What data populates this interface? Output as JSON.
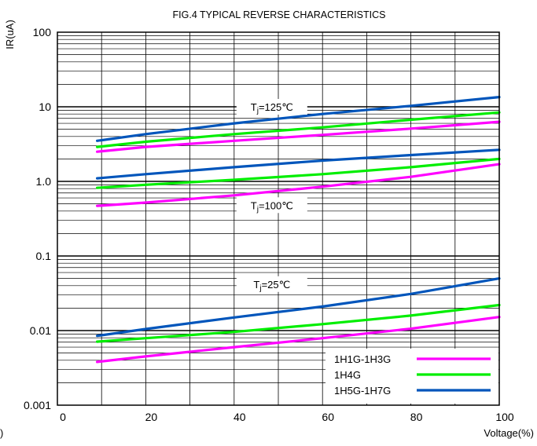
{
  "chart_data": {
    "type": "line",
    "title": "FIG.4  TYPICAL REVERSE CHARACTERISTICS",
    "ylabel": "IR(uA)",
    "xlabel": "Voltage(%)",
    "x_scale": "linear",
    "y_scale": "log",
    "xlim": [
      0,
      100
    ],
    "ylim": [
      0.001,
      100
    ],
    "x_ticks": [
      "0",
      "20",
      "40",
      "60",
      "80",
      "100"
    ],
    "x_tick_values": [
      0,
      20,
      40,
      60,
      80,
      100
    ],
    "y_ticks": [
      "100",
      "10",
      "1.0",
      "0.1",
      "0.01",
      "0.001"
    ],
    "y_tick_values": [
      100,
      10,
      1,
      0.1,
      0.01,
      0.001
    ],
    "grid": true,
    "legend_position": "bottom-right",
    "stray_label": ")",
    "series": [
      {
        "name": "1H1G-1H3G",
        "group": "Tj=125℃",
        "color": "#ff00ff",
        "x": [
          9,
          20,
          40,
          60,
          80,
          100
        ],
        "y": [
          2.5,
          2.9,
          3.5,
          4.2,
          5.1,
          6.3
        ]
      },
      {
        "name": "1H4G",
        "group": "Tj=125℃",
        "color": "#00ee00",
        "x": [
          9,
          20,
          40,
          60,
          80,
          100
        ],
        "y": [
          2.9,
          3.4,
          4.3,
          5.3,
          6.7,
          8.4
        ]
      },
      {
        "name": "1H5G-1H7G",
        "group": "Tj=125℃",
        "color": "#0055bb",
        "x": [
          9,
          20,
          40,
          60,
          80,
          100
        ],
        "y": [
          3.5,
          4.3,
          6.0,
          8.0,
          10.3,
          13.5
        ]
      },
      {
        "name": "1H1G-1H3G",
        "group": "Tj=100℃",
        "color": "#ff00ff",
        "x": [
          9,
          20,
          40,
          60,
          80,
          100
        ],
        "y": [
          0.47,
          0.52,
          0.65,
          0.85,
          1.15,
          1.7
        ]
      },
      {
        "name": "1H4G",
        "group": "Tj=100℃",
        "color": "#00ee00",
        "x": [
          9,
          20,
          40,
          60,
          80,
          100
        ],
        "y": [
          0.82,
          0.9,
          1.05,
          1.25,
          1.55,
          2.0
        ]
      },
      {
        "name": "1H5G-1H7G",
        "group": "Tj=100℃",
        "color": "#0055bb",
        "x": [
          9,
          20,
          40,
          60,
          80,
          100
        ],
        "y": [
          1.1,
          1.25,
          1.55,
          1.9,
          2.25,
          2.65
        ]
      },
      {
        "name": "1H1G-1H3G",
        "group": "Tj=25℃",
        "color": "#ff00ff",
        "x": [
          9,
          20,
          40,
          60,
          80,
          100
        ],
        "y": [
          0.0038,
          0.0045,
          0.006,
          0.0079,
          0.0106,
          0.0152
        ]
      },
      {
        "name": "1H4G",
        "group": "Tj=25℃",
        "color": "#00ee00",
        "x": [
          9,
          20,
          40,
          60,
          80,
          100
        ],
        "y": [
          0.0071,
          0.0079,
          0.0096,
          0.0122,
          0.0159,
          0.022
        ]
      },
      {
        "name": "1H5G-1H7G",
        "group": "Tj=25℃",
        "color": "#0055bb",
        "x": [
          9,
          20,
          40,
          60,
          80,
          100
        ],
        "y": [
          0.0085,
          0.0105,
          0.015,
          0.021,
          0.031,
          0.05
        ]
      }
    ],
    "annotations": [
      {
        "prefix": "T",
        "sub": "j",
        "suffix": "=125℃",
        "x": 40,
        "y": 10
      },
      {
        "prefix": "T",
        "sub": "j",
        "suffix": "=100℃",
        "x": 40,
        "y": 0.48
      },
      {
        "prefix": "T",
        "sub": "j",
        "suffix": "=25℃",
        "x": 40,
        "y": 0.042
      }
    ],
    "legend": [
      {
        "label": "1H1G-1H3G",
        "color": "#ff00ff"
      },
      {
        "label": "1H4G",
        "color": "#00ee00"
      },
      {
        "label": "1H5G-1H7G",
        "color": "#0055bb"
      }
    ]
  }
}
